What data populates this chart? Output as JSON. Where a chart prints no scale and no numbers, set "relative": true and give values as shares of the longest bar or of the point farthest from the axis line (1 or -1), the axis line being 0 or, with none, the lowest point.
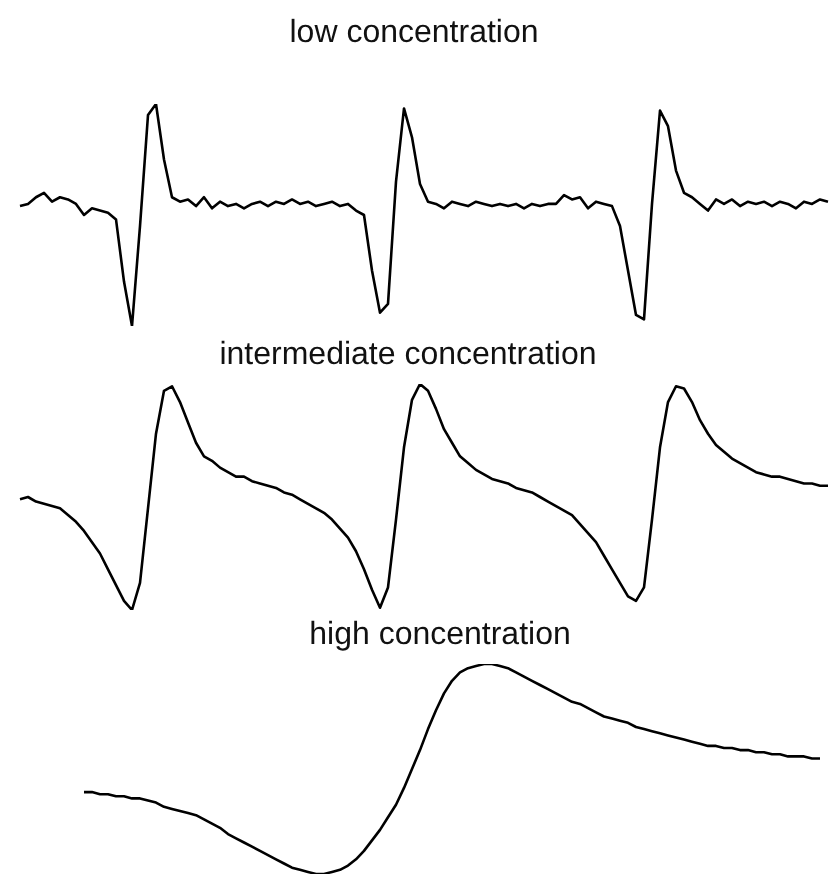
{
  "chart_data": [
    {
      "type": "line",
      "title": "low concentration",
      "color": "#000000",
      "relative": true,
      "categories": [
        null,
        null,
        null,
        null,
        null,
        null,
        null,
        null,
        null,
        null,
        null,
        null,
        null,
        null,
        null,
        null,
        null,
        null,
        null,
        null,
        null,
        null,
        null,
        null,
        null,
        null,
        null,
        null,
        null,
        null,
        null,
        null,
        null,
        null,
        null,
        null,
        null,
        null,
        null,
        null,
        null,
        null,
        null,
        null,
        null,
        null,
        null,
        null,
        null,
        null,
        null,
        null,
        null,
        null,
        null,
        null,
        null,
        null,
        null,
        null,
        null,
        null,
        null,
        null,
        null,
        null,
        null,
        null,
        null,
        null,
        null,
        null,
        null,
        null,
        null,
        null,
        null,
        null,
        null,
        null,
        null,
        null,
        null,
        null,
        null,
        null,
        null,
        null,
        null,
        null,
        null,
        null,
        null,
        null,
        null,
        null,
        null,
        null,
        null,
        null,
        null,
        null
      ],
      "values": [
        0.54,
        0.55,
        0.58,
        0.6,
        0.56,
        0.58,
        0.57,
        0.55,
        0.5,
        0.53,
        0.52,
        0.51,
        0.48,
        0.2,
        0.0,
        0.45,
        0.95,
        1.0,
        0.75,
        0.58,
        0.56,
        0.57,
        0.54,
        0.58,
        0.53,
        0.56,
        0.54,
        0.55,
        0.53,
        0.55,
        0.56,
        0.54,
        0.56,
        0.55,
        0.57,
        0.55,
        0.56,
        0.54,
        0.55,
        0.56,
        0.54,
        0.55,
        0.52,
        0.5,
        0.25,
        0.06,
        0.1,
        0.65,
        0.98,
        0.85,
        0.64,
        0.56,
        0.55,
        0.53,
        0.56,
        0.55,
        0.54,
        0.56,
        0.55,
        0.54,
        0.55,
        0.54,
        0.55,
        0.53,
        0.55,
        0.54,
        0.55,
        0.55,
        0.59,
        0.57,
        0.58,
        0.53,
        0.56,
        0.55,
        0.54,
        0.45,
        0.25,
        0.05,
        0.03,
        0.55,
        0.97,
        0.9,
        0.7,
        0.6,
        0.58,
        0.55,
        0.52,
        0.57,
        0.55,
        0.57,
        0.54,
        0.56,
        0.55,
        0.56,
        0.54,
        0.56,
        0.55,
        0.53,
        0.56,
        0.55,
        0.57,
        0.56
      ]
    },
    {
      "type": "line",
      "title": "intermediate concentration",
      "color": "#000000",
      "relative": true,
      "categories": [
        null,
        null,
        null,
        null,
        null,
        null,
        null,
        null,
        null,
        null,
        null,
        null,
        null,
        null,
        null,
        null,
        null,
        null,
        null,
        null,
        null,
        null,
        null,
        null,
        null,
        null,
        null,
        null,
        null,
        null,
        null,
        null,
        null,
        null,
        null,
        null,
        null,
        null,
        null,
        null,
        null,
        null,
        null,
        null,
        null,
        null,
        null,
        null,
        null,
        null,
        null,
        null,
        null,
        null,
        null,
        null,
        null,
        null,
        null,
        null,
        null,
        null,
        null,
        null,
        null,
        null,
        null,
        null,
        null,
        null,
        null,
        null,
        null,
        null,
        null,
        null,
        null,
        null,
        null,
        null,
        null,
        null,
        null,
        null,
        null,
        null,
        null,
        null,
        null,
        null,
        null,
        null,
        null,
        null,
        null,
        null,
        null,
        null,
        null,
        null,
        null,
        null
      ],
      "values": [
        0.49,
        0.5,
        0.48,
        0.47,
        0.46,
        0.45,
        0.42,
        0.39,
        0.35,
        0.3,
        0.25,
        0.18,
        0.11,
        0.04,
        0.0,
        0.12,
        0.45,
        0.78,
        0.97,
        0.99,
        0.92,
        0.83,
        0.74,
        0.68,
        0.66,
        0.63,
        0.61,
        0.59,
        0.59,
        0.57,
        0.56,
        0.55,
        0.54,
        0.52,
        0.51,
        0.49,
        0.47,
        0.45,
        0.43,
        0.4,
        0.36,
        0.32,
        0.26,
        0.18,
        0.09,
        0.01,
        0.1,
        0.4,
        0.72,
        0.93,
        1.0,
        0.97,
        0.89,
        0.8,
        0.74,
        0.68,
        0.65,
        0.62,
        0.6,
        0.58,
        0.57,
        0.56,
        0.54,
        0.53,
        0.52,
        0.5,
        0.48,
        0.46,
        0.44,
        0.42,
        0.38,
        0.34,
        0.3,
        0.24,
        0.18,
        0.12,
        0.06,
        0.04,
        0.1,
        0.4,
        0.72,
        0.92,
        0.99,
        0.98,
        0.92,
        0.84,
        0.78,
        0.73,
        0.7,
        0.67,
        0.65,
        0.63,
        0.61,
        0.6,
        0.59,
        0.59,
        0.58,
        0.57,
        0.56,
        0.56,
        0.55,
        0.55
      ]
    },
    {
      "type": "line",
      "title": "high concentration",
      "color": "#000000",
      "relative": true,
      "categories": [
        null,
        null,
        null,
        null,
        null,
        null,
        null,
        null,
        null,
        null,
        null,
        null,
        null,
        null,
        null,
        null,
        null,
        null,
        null,
        null,
        null,
        null,
        null,
        null,
        null,
        null,
        null,
        null,
        null,
        null,
        null,
        null,
        null,
        null,
        null,
        null,
        null,
        null,
        null,
        null,
        null,
        null,
        null,
        null,
        null,
        null,
        null,
        null,
        null,
        null,
        null,
        null,
        null,
        null,
        null,
        null,
        null,
        null,
        null,
        null,
        null,
        null,
        null,
        null,
        null,
        null,
        null,
        null,
        null,
        null,
        null,
        null,
        null,
        null,
        null,
        null,
        null,
        null,
        null,
        null,
        null,
        null,
        null,
        null,
        null,
        null,
        null,
        null,
        null,
        null,
        null,
        null,
        null,
        null,
        null,
        null,
        null,
        null,
        null,
        null,
        null,
        null
      ],
      "values": [
        null,
        null,
        null,
        null,
        null,
        null,
        null,
        null,
        0.39,
        0.39,
        0.38,
        0.38,
        0.37,
        0.37,
        0.36,
        0.36,
        0.35,
        0.34,
        0.32,
        0.31,
        0.3,
        0.29,
        0.28,
        0.26,
        0.24,
        0.22,
        0.19,
        0.17,
        0.15,
        0.13,
        0.11,
        0.09,
        0.07,
        0.05,
        0.03,
        0.02,
        0.01,
        0.0,
        0.0,
        0.01,
        0.02,
        0.04,
        0.07,
        0.11,
        0.16,
        0.21,
        0.27,
        0.33,
        0.41,
        0.5,
        0.59,
        0.69,
        0.78,
        0.86,
        0.92,
        0.96,
        0.98,
        0.99,
        1.0,
        1.0,
        0.99,
        0.98,
        0.96,
        0.94,
        0.92,
        0.9,
        0.88,
        0.86,
        0.84,
        0.82,
        0.81,
        0.79,
        0.77,
        0.75,
        0.74,
        0.73,
        0.72,
        0.7,
        0.69,
        0.68,
        0.67,
        0.66,
        0.65,
        0.64,
        0.63,
        0.62,
        0.61,
        0.61,
        0.6,
        0.6,
        0.59,
        0.59,
        0.58,
        0.58,
        0.57,
        0.57,
        0.56,
        0.56,
        0.56,
        0.55,
        0.55,
        null
      ]
    }
  ]
}
